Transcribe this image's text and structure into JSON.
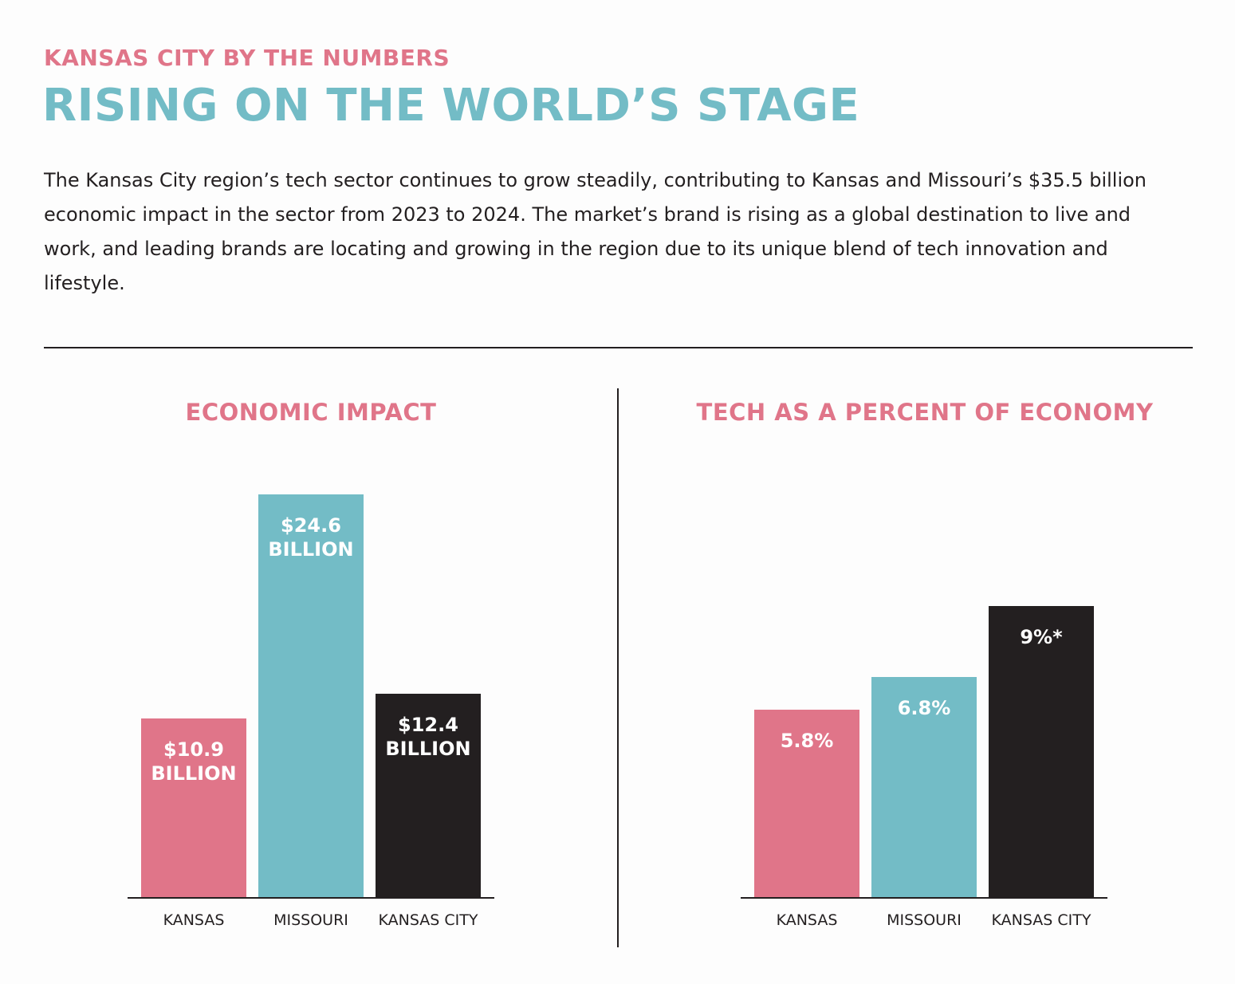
{
  "header": {
    "eyebrow": "KANSAS CITY BY THE NUMBERS",
    "title": "RISING ON THE WORLD’S STAGE",
    "body": "The Kansas City region’s tech sector continues to grow steadily, contributing to Kansas and Missouri’s $35.5 billion economic impact in the sector from 2023 to 2024. The market’s brand is rising as a global destination to live and work, and leading brands are locating and growing in the region due to its unique blend of tech innovation and lifestyle."
  },
  "chart_data": [
    {
      "type": "bar",
      "title": "ECONOMIC IMPACT",
      "categories": [
        "KANSAS",
        "MISSOURI",
        "KANSAS CITY"
      ],
      "values": [
        10.9,
        24.6,
        12.4
      ],
      "value_labels": [
        "$10.9 BILLION",
        "$24.6 BILLION",
        "$12.4 BILLION"
      ],
      "colors": [
        "#e07589",
        "#73bcc6",
        "#231f20"
      ]
    },
    {
      "type": "bar",
      "title": "TECH AS A PERCENT OF ECONOMY",
      "categories": [
        "KANSAS",
        "MISSOURI",
        "KANSAS CITY"
      ],
      "values": [
        5.8,
        6.8,
        9
      ],
      "value_labels": [
        "5.8%",
        "6.8%",
        "9%*"
      ],
      "colors": [
        "#e07589",
        "#73bcc6",
        "#231f20"
      ]
    }
  ]
}
